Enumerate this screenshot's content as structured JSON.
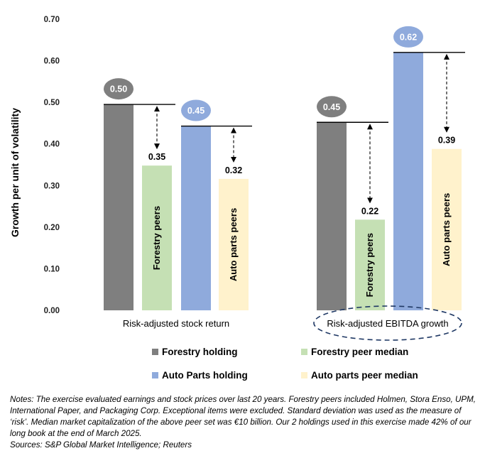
{
  "chart_data": {
    "type": "bar",
    "ylabel": "Growth per unit of volatility",
    "ylim": [
      0,
      0.7
    ],
    "yticks": [
      "0.00",
      "0.10",
      "0.20",
      "0.30",
      "0.40",
      "0.50",
      "0.60",
      "0.70"
    ],
    "groups": [
      {
        "label": "Risk-adjusted stock return",
        "highlighted": false,
        "bars": [
          {
            "series": "Forestry holding",
            "value": 0.495,
            "label": "0.50",
            "label_style": "bubble"
          },
          {
            "series": "Forestry peer median",
            "value": 0.348,
            "label": "0.35",
            "label_style": "text",
            "inside_label": "Forestry peers"
          },
          {
            "series": "Auto Parts holding",
            "value": 0.443,
            "label": "0.45",
            "label_style": "bubble"
          },
          {
            "series": "Auto parts peer median",
            "value": 0.316,
            "label": "0.32",
            "label_style": "text",
            "inside_label": "Auto parts peers"
          }
        ]
      },
      {
        "label": "Risk-adjusted EBITDA growth",
        "highlighted": true,
        "bars": [
          {
            "series": "Forestry holding",
            "value": 0.452,
            "label": "0.45",
            "label_style": "bubble"
          },
          {
            "series": "Forestry peer median",
            "value": 0.218,
            "label": "0.22",
            "label_style": "text",
            "inside_label": "Forestry peers"
          },
          {
            "series": "Auto Parts holding",
            "value": 0.62,
            "label": "0.62",
            "label_style": "bubble"
          },
          {
            "series": "Auto parts peer median",
            "value": 0.388,
            "label": "0.39",
            "label_style": "text",
            "inside_label": "Auto parts peers"
          }
        ]
      }
    ],
    "series": [
      {
        "name": "Forestry holding",
        "color": "#7f7f7f"
      },
      {
        "name": "Forestry peer median",
        "color": "#c5e0b4"
      },
      {
        "name": "Auto Parts holding",
        "color": "#8faadc"
      },
      {
        "name": "Auto parts peer median",
        "color": "#fff2cc"
      }
    ],
    "bubble_colors": {
      "Forestry holding": "#7f7f7f",
      "Auto Parts holding": "#8faadc"
    },
    "legend_position": "bottom",
    "grid": false
  },
  "legend": {
    "items": [
      {
        "label": "Forestry holding",
        "color": "#7f7f7f"
      },
      {
        "label": "Forestry peer median",
        "color": "#c5e0b4"
      },
      {
        "label": "Auto Parts holding",
        "color": "#8faadc"
      },
      {
        "label": "Auto parts peer median",
        "color": "#fff2cc"
      }
    ]
  },
  "notes": {
    "text": "Notes: The exercise evaluated earnings and stock prices over last 20 years.  Forestry peers included Holmen, Stora Enso, UPM, International Paper, and Packaging Corp. Exceptional items were excluded.  Standard deviation was used as the measure of ‘risk’.   Median market capitalization of the above peer set was €10 billion.  Our 2 holdings used in this exercise made 42% of our long book at the end of March 2025.",
    "sources": "Sources: S&P Global Market Intelligence; Reuters"
  }
}
